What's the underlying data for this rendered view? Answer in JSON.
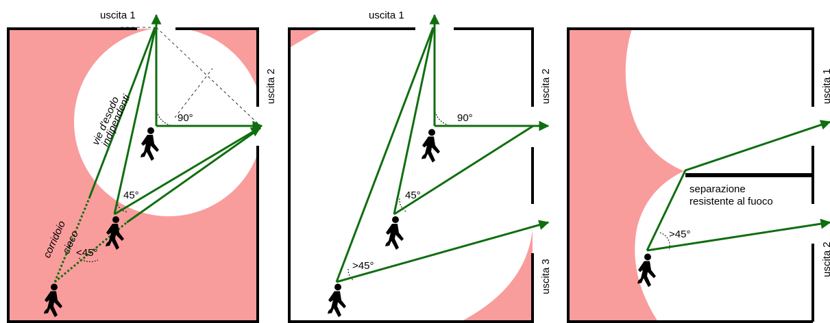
{
  "colors": {
    "zone": "#f99c9c",
    "arrow": "#0f6e0f",
    "wall": "#000000"
  },
  "icons": [
    "person-walking-icon"
  ],
  "panel1": {
    "exit_top": "uscita 1",
    "exit_right": "uscita 2",
    "angle_right": "90°",
    "angle_45": "45°",
    "angle_less": "<45°",
    "label_paths_1": "vie d'esodo",
    "label_paths_2": "indipendenti",
    "label_corridor_1": "corridoio",
    "label_corridor_2": "cieco"
  },
  "panel2": {
    "exit_top": "uscita 1",
    "exit_right_upper": "uscita 2",
    "exit_right_lower": "uscita 3",
    "angle_right": "90°",
    "angle_45": "45°",
    "angle_more": ">45°"
  },
  "panel3": {
    "exit_right_upper": "uscita 1",
    "exit_right_lower": "uscita 2",
    "angle_more": ">45°",
    "separation_1": "separazione",
    "separation_2": "resistente al fuoco"
  }
}
